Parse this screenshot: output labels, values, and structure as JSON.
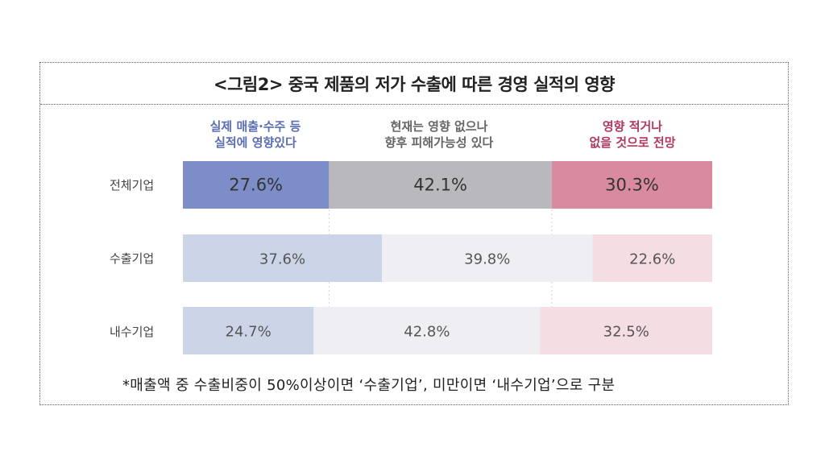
{
  "title": "<그림2> 중국 제품의 저가 수출에 따른 경영 실적의 영향",
  "footnote": "*매출액 중 수출비중이 50%이상이면 ‘수출기업’, 미만이면 ‘내수기업’으로 구분",
  "legend": [
    {
      "line1": "실제 매출·수주 등",
      "line2": "실적에 영향있다",
      "color": "#5b6eb3"
    },
    {
      "line1": "현재는 영향 없으나",
      "line2": "향후 피해가능성 있다",
      "color": "#666666"
    },
    {
      "line1": "영향 적거나",
      "line2": "없을 것으로 전망",
      "color": "#b0375f"
    }
  ],
  "colors": {
    "strong": [
      "#7d8dc8",
      "#b9b8bd",
      "#d98a9e"
    ],
    "light": [
      "#ccd5e8",
      "#efeef2",
      "#f4dde3"
    ]
  },
  "chart_data": {
    "type": "bar",
    "orientation": "horizontal-stacked-100",
    "categories": [
      "전체기업",
      "수출기업",
      "내수기업"
    ],
    "series": [
      {
        "name": "실제 매출·수주 등 실적에 영향있다",
        "values": [
          27.6,
          37.6,
          24.7
        ]
      },
      {
        "name": "현재는 영향 없으나 향후 피해가능성 있다",
        "values": [
          42.1,
          39.8,
          42.8
        ]
      },
      {
        "name": "영향 적거나 없을 것으로 전망",
        "values": [
          30.3,
          22.6,
          32.5
        ]
      }
    ],
    "value_labels": [
      [
        "27.6%",
        "42.1%",
        "30.3%"
      ],
      [
        "37.6%",
        "39.8%",
        "22.6%"
      ],
      [
        "24.7%",
        "42.8%",
        "32.5%"
      ]
    ],
    "xlim": [
      0,
      100
    ],
    "legend_position": "top",
    "grid": false
  }
}
